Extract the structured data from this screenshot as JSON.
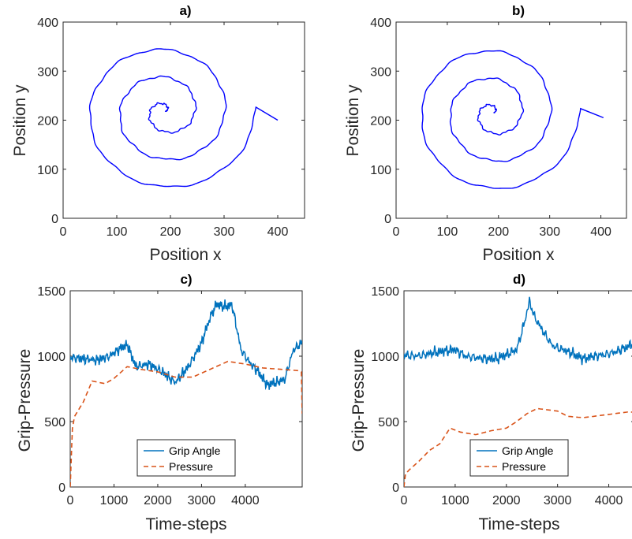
{
  "colors": {
    "spiral": "#0000ff",
    "grip": "#0072bd",
    "pressure": "#d95319",
    "axis": "#262626"
  },
  "chart_data": [
    {
      "type": "line",
      "title": "a)",
      "xlabel": "Position x",
      "ylabel": "Position y",
      "xlim": [
        0,
        450
      ],
      "ylim": [
        0,
        400
      ],
      "xticks": [
        "0",
        "100",
        "200",
        "300",
        "400"
      ],
      "yticks": [
        "0",
        "100",
        "200",
        "300",
        "400"
      ],
      "spiral": {
        "cx": 190,
        "cy": 218,
        "theta_end": 18.9,
        "growth": 8.9,
        "end_x": 400,
        "end_y": 200
      }
    },
    {
      "type": "line",
      "title": "b)",
      "xlabel": "Position x",
      "ylabel": "Position y",
      "xlim": [
        0,
        450
      ],
      "ylim": [
        0,
        400
      ],
      "xticks": [
        "0",
        "100",
        "200",
        "300",
        "400"
      ],
      "yticks": [
        "0",
        "100",
        "200",
        "300",
        "400"
      ],
      "spiral": {
        "cx": 190,
        "cy": 215,
        "theta_end": 18.9,
        "growth": 8.9,
        "end_x": 405,
        "end_y": 205
      }
    },
    {
      "type": "line",
      "title": "c)",
      "xlabel": "Time-steps",
      "ylabel": "Grip-Pressure",
      "xlim": [
        0,
        5300
      ],
      "ylim": [
        0,
        1500
      ],
      "xticks": [
        "0",
        "1000",
        "2000",
        "3000",
        "4000"
      ],
      "yticks": [
        "0",
        "500",
        "1000",
        "1500"
      ],
      "legend": {
        "position": "bottom-center",
        "entries": [
          "Grip Angle",
          "Pressure"
        ]
      },
      "series": [
        {
          "name": "Grip Angle",
          "style": "solid",
          "x": [
            0,
            300,
            600,
            900,
            1100,
            1300,
            1500,
            1800,
            2100,
            2400,
            2700,
            3000,
            3200,
            3350,
            3500,
            3700,
            3900,
            4100,
            4300,
            4500,
            4700,
            4900,
            5100,
            5300
          ],
          "y": [
            990,
            980,
            970,
            1000,
            1050,
            1090,
            920,
            940,
            880,
            800,
            920,
            1100,
            1300,
            1400,
            1380,
            1390,
            1050,
            950,
            880,
            780,
            800,
            820,
            1050,
            1100
          ]
        },
        {
          "name": "Pressure",
          "style": "dashed",
          "x": [
            0,
            50,
            100,
            300,
            500,
            800,
            1000,
            1300,
            1600,
            2000,
            2400,
            2800,
            3200,
            3600,
            4000,
            4400,
            4800,
            5200,
            5280,
            5300
          ],
          "y": [
            0,
            450,
            540,
            650,
            810,
            790,
            830,
            920,
            900,
            880,
            840,
            840,
            900,
            960,
            940,
            910,
            900,
            890,
            880,
            560
          ]
        }
      ]
    },
    {
      "type": "line",
      "title": "d)",
      "xlabel": "Time-steps",
      "ylabel": "Grip-Pressure",
      "xlim": [
        0,
        4500
      ],
      "ylim": [
        0,
        1500
      ],
      "xticks": [
        "0",
        "1000",
        "2000",
        "3000",
        "4000"
      ],
      "yticks": [
        "0",
        "500",
        "1000",
        "1500"
      ],
      "legend": {
        "position": "bottom-center",
        "entries": [
          "Grip Angle",
          "Pressure"
        ]
      },
      "series": [
        {
          "name": "Grip Angle",
          "style": "solid",
          "x": [
            0,
            200,
            400,
            600,
            800,
            1000,
            1200,
            1400,
            1600,
            1800,
            2000,
            2200,
            2350,
            2450,
            2550,
            2700,
            2900,
            3100,
            3300,
            3500,
            3700,
            3900,
            4100,
            4300,
            4500
          ],
          "y": [
            1010,
            1000,
            1010,
            1030,
            1040,
            1050,
            1000,
            990,
            980,
            980,
            1010,
            1050,
            1250,
            1420,
            1300,
            1200,
            1080,
            1050,
            1020,
            980,
            1000,
            1010,
            1030,
            1060,
            1100
          ]
        },
        {
          "name": "Pressure",
          "style": "dashed",
          "x": [
            0,
            30,
            100,
            300,
            500,
            700,
            900,
            1100,
            1400,
            1700,
            2000,
            2200,
            2400,
            2600,
            2800,
            3000,
            3200,
            3500,
            3800,
            4100,
            4400,
            4500
          ],
          "y": [
            0,
            100,
            130,
            200,
            280,
            330,
            450,
            420,
            400,
            430,
            450,
            500,
            560,
            600,
            590,
            580,
            540,
            530,
            545,
            560,
            575,
            570
          ]
        }
      ]
    }
  ]
}
